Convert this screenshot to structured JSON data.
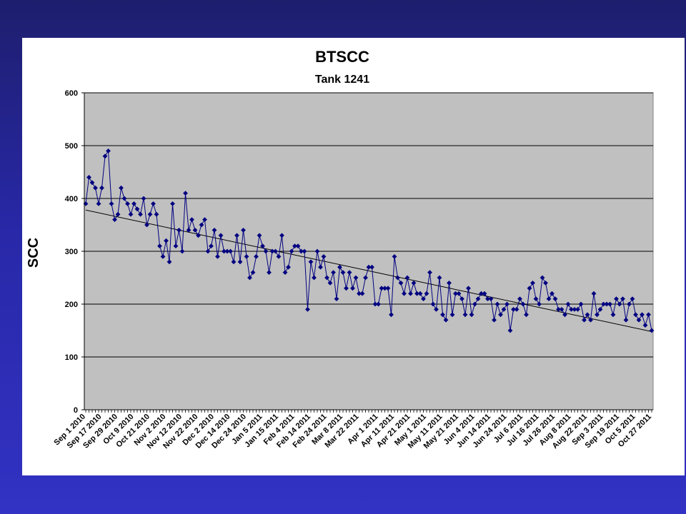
{
  "colors": {
    "background_top": "#1e1e6e",
    "background_bottom": "#3232c4",
    "panel": "#ffffff",
    "plot_area": "#c0c0c0",
    "series": "#000080",
    "trendline": "#000000"
  },
  "chart_data": {
    "type": "line",
    "title": "BTSCC",
    "subtitle": "Tank 1241",
    "xlabel": "",
    "ylabel": "SCC",
    "ylim": [
      0,
      600
    ],
    "yticks": [
      0,
      100,
      200,
      300,
      400,
      500,
      600
    ],
    "grid": true,
    "legend": "none",
    "marker": "diamond",
    "x_tick_labels": [
      "Sep 1 2010",
      "Sep 17 2010",
      "Sep 29 2010",
      "Oct 9 2010",
      "Oct 21 2010",
      "Nov 2 2010",
      "Nov 12 2010",
      "Nov 22 2010",
      "Dec 2 2010",
      "Dec 14 2010",
      "Dec 24 2010",
      "Jan 5 2011",
      "Jan 15 2011",
      "Feb 4 2011",
      "Feb 14 2011",
      "Feb 24 2011",
      "Mar 8 2011",
      "Mar 22 2011",
      "Apr 1 2011",
      "Apr 11 2011",
      "Apr 21 2011",
      "May 1 2011",
      "May 11 2011",
      "May 21 2011",
      "Jun 4 2011",
      "Jun 14 2011",
      "Jun 24 2011",
      "Jul 6 2011",
      "Jul 16 2011",
      "Jul 26 2011",
      "Aug 8 2011",
      "Aug 22 2011",
      "Sep 3 2011",
      "Sep 19 2011",
      "Oct 5 2011",
      "Oct 27 2011"
    ],
    "series": [
      {
        "values": [
          390,
          440,
          430,
          420,
          390,
          420,
          480,
          490,
          390,
          360,
          370,
          420,
          400,
          390,
          370,
          390,
          380,
          370,
          400,
          350,
          370,
          390,
          370,
          310,
          290,
          320,
          280,
          390,
          310,
          340,
          300,
          410,
          340,
          360,
          340,
          330,
          350,
          360,
          300,
          310,
          340,
          290,
          330,
          300,
          300,
          300,
          280,
          330,
          280,
          340,
          290,
          250,
          260,
          290,
          330,
          310,
          300,
          260,
          300,
          300,
          290,
          330,
          260,
          270,
          300,
          310,
          310,
          300,
          300,
          190,
          280,
          250,
          300,
          270,
          290,
          250,
          240,
          260,
          210,
          270,
          260,
          230,
          260,
          230,
          250,
          220,
          220,
          250,
          270,
          270,
          200,
          200,
          230,
          230,
          230,
          180,
          290,
          250,
          240,
          220,
          250,
          220,
          240,
          220,
          220,
          210,
          220,
          260,
          200,
          190,
          250,
          180,
          170,
          240,
          180,
          220,
          220,
          210,
          180,
          230,
          180,
          200,
          210,
          220,
          220,
          210,
          210,
          170,
          200,
          180,
          190,
          200,
          150,
          190,
          190,
          210,
          200,
          180,
          230,
          240,
          210,
          200,
          250,
          240,
          210,
          220,
          210,
          190,
          190,
          180,
          200,
          190,
          190,
          190,
          200,
          170,
          180,
          170,
          220,
          180,
          190,
          200,
          200,
          200,
          180,
          210,
          200,
          210,
          170,
          200,
          210,
          180,
          170,
          180,
          160,
          180,
          150
        ]
      }
    ],
    "trendline": {
      "type": "linear",
      "start": 378,
      "end": 148
    }
  }
}
